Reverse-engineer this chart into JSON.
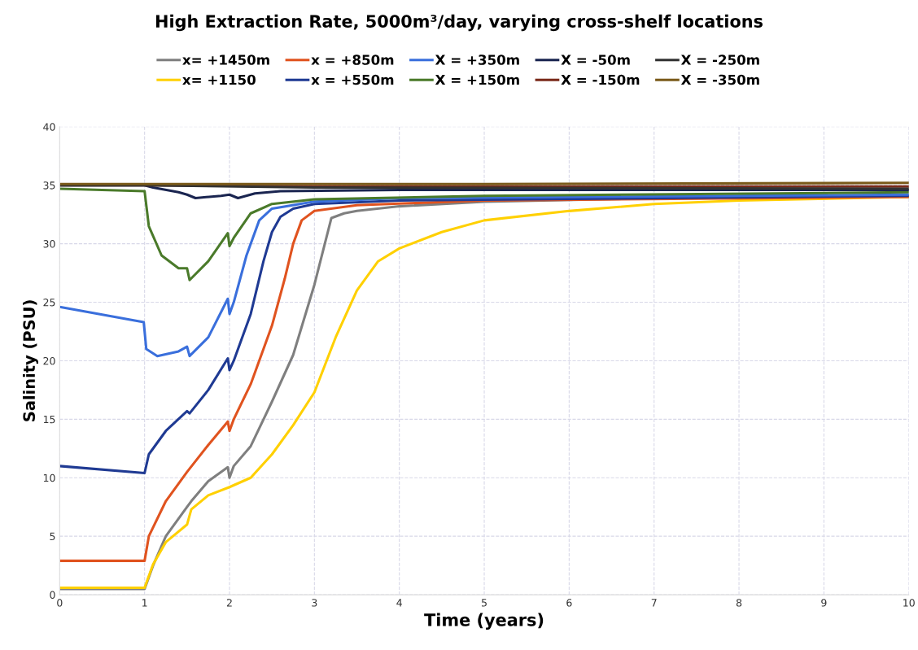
{
  "chart_data": {
    "type": "line",
    "title": "High Extraction Rate, 5000m³/day, varying cross-shelf locations",
    "xlabel": "Time (years)",
    "ylabel": "Salinity (PSU)",
    "xlim": [
      0,
      10
    ],
    "xticks": [
      0,
      1,
      2,
      3,
      4,
      5,
      6,
      7,
      8,
      9,
      10
    ],
    "ylim": [
      0,
      40
    ],
    "yticks": [
      0,
      5,
      10,
      15,
      20,
      25,
      30,
      35,
      40
    ],
    "grid": true,
    "legend": "top",
    "line_style": "solid",
    "series": [
      {
        "name": "x= +1450m",
        "color": "#7f7f7f",
        "x": [
          0,
          1.0,
          1.1,
          1.25,
          1.5,
          1.55,
          1.75,
          1.98,
          2.0,
          2.05,
          2.25,
          2.5,
          2.75,
          3.0,
          3.2,
          3.35,
          3.5,
          4,
          5,
          7,
          10
        ],
        "values": [
          0.5,
          0.5,
          2.5,
          5,
          7.5,
          8,
          9.7,
          10.9,
          10,
          11,
          12.7,
          16.5,
          20.5,
          26.5,
          32.2,
          32.6,
          32.8,
          33.2,
          33.6,
          33.9,
          34.0
        ]
      },
      {
        "name": "x= +1150",
        "color": "#ffd000",
        "x": [
          0,
          1.0,
          1.1,
          1.25,
          1.5,
          1.55,
          1.75,
          2.0,
          2.25,
          2.5,
          2.75,
          3.0,
          3.25,
          3.5,
          3.75,
          4,
          4.5,
          5,
          6,
          7,
          8,
          10
        ],
        "values": [
          0.6,
          0.6,
          2.6,
          4.5,
          6,
          7.3,
          8.5,
          9.2,
          10,
          12,
          14.5,
          17.3,
          22,
          26,
          28.5,
          29.6,
          31,
          32,
          32.8,
          33.4,
          33.7,
          34.0
        ]
      },
      {
        "name": "x = +850m",
        "color": "#e0531f",
        "x": [
          0,
          1.0,
          1.05,
          1.25,
          1.5,
          1.75,
          1.98,
          2.0,
          2.05,
          2.25,
          2.5,
          2.65,
          2.75,
          2.85,
          3.0,
          3.5,
          5,
          10
        ],
        "values": [
          2.9,
          2.9,
          5,
          8,
          10.5,
          12.8,
          14.8,
          14,
          15,
          18,
          23,
          27,
          30,
          32,
          32.8,
          33.3,
          33.7,
          34.0
        ]
      },
      {
        "name": "x = +550m",
        "color": "#1f3a93",
        "x": [
          0,
          1.0,
          1.05,
          1.25,
          1.5,
          1.53,
          1.75,
          1.98,
          2.0,
          2.05,
          2.25,
          2.4,
          2.5,
          2.6,
          2.75,
          3,
          4,
          10
        ],
        "values": [
          11,
          10.4,
          12,
          14,
          15.7,
          15.5,
          17.5,
          20.2,
          19.2,
          20,
          24,
          28.5,
          31,
          32.3,
          33,
          33.4,
          33.7,
          34.1
        ]
      },
      {
        "name": "X = +350m",
        "color": "#3a6fdc",
        "x": [
          0,
          0.99,
          1.02,
          1.15,
          1.4,
          1.5,
          1.53,
          1.75,
          1.98,
          2.0,
          2.05,
          2.2,
          2.35,
          2.5,
          3,
          4,
          10
        ],
        "values": [
          24.6,
          23.3,
          21,
          20.4,
          20.8,
          21.2,
          20.4,
          22,
          25.3,
          24,
          25,
          29,
          32,
          33,
          33.6,
          33.9,
          34.2
        ]
      },
      {
        "name": "X = +150m",
        "color": "#4a7a2a",
        "x": [
          0,
          1.0,
          1.05,
          1.2,
          1.4,
          1.5,
          1.53,
          1.75,
          1.98,
          2.0,
          2.05,
          2.25,
          2.5,
          3,
          5,
          10
        ],
        "values": [
          34.7,
          34.5,
          31.5,
          29,
          27.9,
          27.9,
          26.9,
          28.5,
          30.9,
          29.8,
          30.5,
          32.6,
          33.4,
          33.8,
          34.1,
          34.4
        ]
      },
      {
        "name": "X = -50m",
        "color": "#1a2550",
        "x": [
          0,
          1.0,
          1.1,
          1.4,
          1.5,
          1.6,
          1.9,
          2.0,
          2.1,
          2.3,
          2.6,
          4,
          10
        ],
        "values": [
          35.0,
          35.0,
          34.8,
          34.4,
          34.2,
          33.9,
          34.1,
          34.2,
          33.9,
          34.3,
          34.5,
          34.6,
          34.6
        ]
      },
      {
        "name": "X = -150m",
        "color": "#7a2a1a",
        "x": [
          0,
          1,
          3,
          10
        ],
        "values": [
          35.0,
          35.0,
          34.9,
          34.9
        ]
      },
      {
        "name": "X = -250m",
        "color": "#333333",
        "x": [
          0,
          1,
          3,
          10
        ],
        "values": [
          35.0,
          35.0,
          34.8,
          34.7
        ]
      },
      {
        "name": "X = -350m",
        "color": "#7a5a1a",
        "x": [
          0,
          2,
          5,
          10
        ],
        "values": [
          35.1,
          35.1,
          35.1,
          35.2
        ]
      }
    ]
  }
}
